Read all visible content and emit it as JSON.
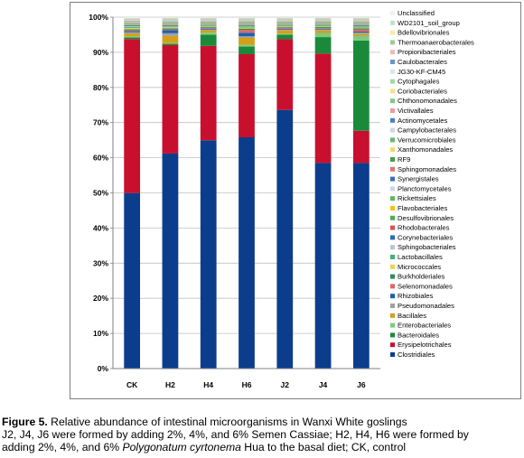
{
  "chart_data": {
    "type": "bar",
    "stacked": true,
    "percent": true,
    "categories": [
      "CK",
      "H2",
      "H4",
      "H6",
      "J2",
      "J4",
      "J6"
    ],
    "ylim": [
      0,
      100
    ],
    "yticks": [
      "0%",
      "10%",
      "20%",
      "30%",
      "40%",
      "50%",
      "60%",
      "70%",
      "80%",
      "90%",
      "100%"
    ],
    "grid": true,
    "legend_position": "right",
    "series": [
      {
        "name": "Clostridiales",
        "color": "#0b3d8c",
        "values": [
          50.5,
          61.5,
          66,
          66.8,
          75,
          59.8,
          58.8
        ]
      },
      {
        "name": "Erysipelotrichales",
        "color": "#c8102e",
        "values": [
          44.3,
          31,
          27.3,
          24,
          20.5,
          31.8,
          9.2
        ]
      },
      {
        "name": "Bacteroidales",
        "color": "#1a8a3a",
        "values": [
          0.5,
          0.4,
          3.2,
          2.2,
          1.3,
          4.8,
          25.8
        ]
      },
      {
        "name": "Enterobacteriales",
        "color": "#7fc97f",
        "values": [
          0.3,
          0.2,
          0.6,
          0.5,
          0.3,
          1.2,
          1.4
        ]
      },
      {
        "name": "Bacillales",
        "color": "#d4a017",
        "values": [
          0.8,
          2.0,
          0.6,
          2.0,
          0.9,
          0.7,
          0.5
        ]
      },
      {
        "name": "Pseudomonadales",
        "color": "#a0a0a0",
        "values": [
          0.4,
          0.8,
          0.3,
          0.5,
          0.3,
          0.3,
          0.4
        ]
      },
      {
        "name": "Rhizobiales",
        "color": "#1f5fb0",
        "values": [
          0.3,
          0.9,
          0.2,
          1.0,
          0.2,
          0.2,
          0.3
        ]
      },
      {
        "name": "Selenomonadales",
        "color": "#e06666",
        "values": [
          0.2,
          0.2,
          0.2,
          0.8,
          0.3,
          0.2,
          0.6
        ]
      },
      {
        "name": "Burkholderiales",
        "color": "#2e8b57",
        "values": [
          0.3,
          0.3,
          0.3,
          0.4,
          0.2,
          0.3,
          0.3
        ]
      },
      {
        "name": "Micrococcales",
        "color": "#e8d44d",
        "values": [
          0.4,
          0.3,
          0.2,
          0.3,
          0.2,
          0.2,
          0.2
        ]
      },
      {
        "name": "Lactobacillales",
        "color": "#3cb371",
        "values": [
          0.3,
          0.2,
          0.2,
          0.3,
          0.2,
          0.2,
          0.3
        ]
      },
      {
        "name": "Sphingobacteriales",
        "color": "#b8c4d6",
        "values": [
          0.2,
          0.2,
          0.1,
          0.2,
          0.1,
          0.1,
          0.2
        ]
      },
      {
        "name": "Corynebacteriales",
        "color": "#2a6db5",
        "values": [
          0.2,
          0.2,
          0.1,
          0.2,
          0.1,
          0.1,
          0.2
        ]
      },
      {
        "name": "Rhodobacterales",
        "color": "#d9534f",
        "values": [
          0.1,
          0.1,
          0.1,
          0.1,
          0.1,
          0.1,
          0.1
        ]
      },
      {
        "name": "Desulfovibrionales",
        "color": "#4caf50",
        "values": [
          0.1,
          0.1,
          0.1,
          0.1,
          0.1,
          0.1,
          0.1
        ]
      },
      {
        "name": "Flavobacteriales",
        "color": "#f0c419",
        "values": [
          0.1,
          0.1,
          0.1,
          0.1,
          0.1,
          0.1,
          0.1
        ]
      },
      {
        "name": "Rickettsiales",
        "color": "#5cb85c",
        "values": [
          0.1,
          0.1,
          0.1,
          0.1,
          0.1,
          0.1,
          0.1
        ]
      },
      {
        "name": "Planctomycetales",
        "color": "#c9d6e8",
        "values": [
          0.1,
          0.1,
          0.1,
          0.1,
          0.1,
          0.1,
          0.1
        ]
      },
      {
        "name": "Synergistales",
        "color": "#3d6fb6",
        "values": [
          0.1,
          0.1,
          0.1,
          0.1,
          0.1,
          0.1,
          0.1
        ]
      },
      {
        "name": "Sphingomonadales",
        "color": "#e57373",
        "values": [
          0.1,
          0.1,
          0.1,
          0.1,
          0.1,
          0.1,
          0.1
        ]
      },
      {
        "name": "RF9",
        "color": "#43a047",
        "values": [
          0.1,
          0.1,
          0.1,
          0.1,
          0.1,
          0.1,
          0.1
        ]
      },
      {
        "name": "Xanthomonadales",
        "color": "#f5d76e",
        "values": [
          0.1,
          0.1,
          0.1,
          0.1,
          0.1,
          0.1,
          0.1
        ]
      },
      {
        "name": "Verrucomicrobiales",
        "color": "#66bb6a",
        "values": [
          0.1,
          0.1,
          0.1,
          0.1,
          0.1,
          0.1,
          0.1
        ]
      },
      {
        "name": "Campylobacterales",
        "color": "#cfd8e3",
        "values": [
          0.1,
          0.1,
          0.1,
          0.1,
          0.1,
          0.1,
          0.1
        ]
      },
      {
        "name": "Actinomycetales",
        "color": "#4a7fc1",
        "values": [
          0.1,
          0.1,
          0.1,
          0.1,
          0.1,
          0.1,
          0.1
        ]
      },
      {
        "name": "Victivallales",
        "color": "#ef9a9a",
        "values": [
          0.1,
          0.1,
          0.1,
          0.1,
          0.1,
          0.1,
          0.1
        ]
      },
      {
        "name": "Chthonomonadales",
        "color": "#81c784",
        "values": [
          0.1,
          0.1,
          0.1,
          0.1,
          0.1,
          0.1,
          0.1
        ]
      },
      {
        "name": "Coriobacteriales",
        "color": "#f7e08a",
        "values": [
          0.1,
          0.1,
          0.1,
          0.1,
          0.1,
          0.1,
          0.1
        ]
      },
      {
        "name": "Cytophagales",
        "color": "#a5d6a7",
        "values": [
          0.1,
          0.1,
          0.1,
          0.1,
          0.1,
          0.1,
          0.1
        ]
      },
      {
        "name": "JG30-KF-CM45",
        "color": "#dde4ec",
        "values": [
          0.1,
          0.1,
          0.1,
          0.1,
          0.1,
          0.1,
          0.1
        ]
      },
      {
        "name": "Caulobacterales",
        "color": "#6d93cc",
        "values": [
          0.1,
          0.1,
          0.1,
          0.1,
          0.1,
          0.1,
          0.1
        ]
      },
      {
        "name": "Propionibacteriales",
        "color": "#f4b6b6",
        "values": [
          0.1,
          0.1,
          0.1,
          0.1,
          0.1,
          0.1,
          0.1
        ]
      },
      {
        "name": "Thermoanaerobacterales",
        "color": "#9ccc9c",
        "values": [
          0.1,
          0.1,
          0.1,
          0.1,
          0.1,
          0.1,
          0.1
        ]
      },
      {
        "name": "Bdellovibrionales",
        "color": "#fae9a8",
        "values": [
          0.1,
          0.1,
          0.1,
          0.1,
          0.1,
          0.1,
          0.1
        ]
      },
      {
        "name": "WD2101_soil_group",
        "color": "#c5e1c5",
        "values": [
          0.1,
          0.1,
          0.1,
          0.1,
          0.1,
          0.1,
          0.1
        ]
      },
      {
        "name": "Unclassified",
        "color": "#eef1f5",
        "values": [
          0.2,
          0.1,
          0.1,
          0.1,
          0.1,
          0.1,
          0.1
        ]
      }
    ]
  },
  "caption": {
    "figure_label": "Figure 5.",
    "title": " Relative abundance of intestinal microorganisms in Wanxi White goslings",
    "line2": "J2, J4, J6 were formed by adding 2%, 4%, and 6% Semen Cassiae; H2, H4, H6 were formed by",
    "line3_pre": "adding 2%, 4%, and 6% ",
    "line3_italic": "Polygonatum cyrtonema",
    "line3_post": " Hua to the basal diet; CK, control"
  }
}
